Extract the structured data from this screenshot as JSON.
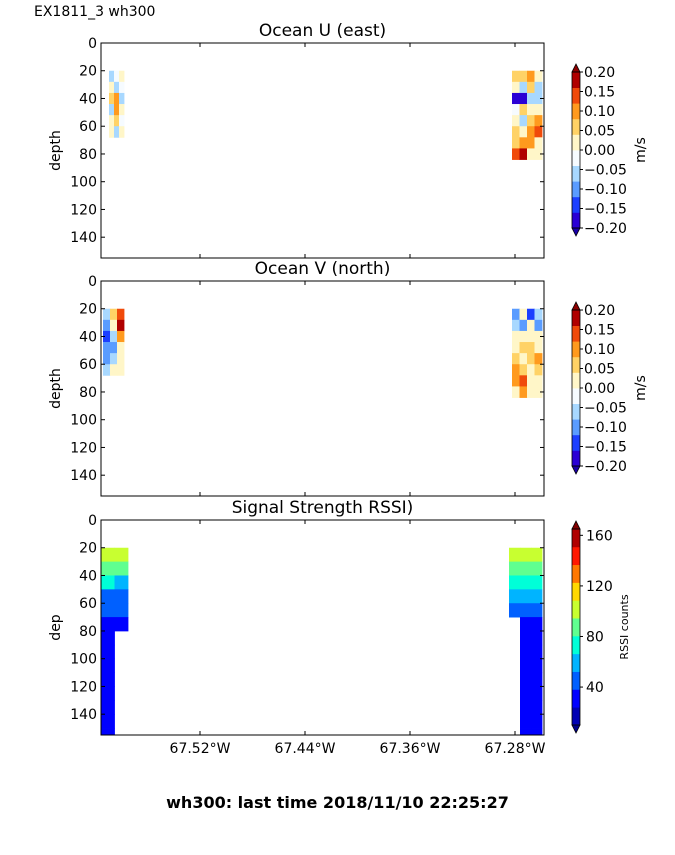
{
  "page": {
    "corner_title": "EX1811_3 wh300",
    "footer": "wh300: last time 2018/11/10 22:25:27"
  },
  "chart_data": [
    {
      "type": "heatmap",
      "title": "Ocean U (east)",
      "ylabel": "depth",
      "ylim": [
        155,
        0
      ],
      "yticks": [
        0,
        20,
        40,
        60,
        80,
        100,
        120,
        140
      ],
      "xticks": [],
      "colorbar": {
        "label": "m/s",
        "ticks": [
          "0.20",
          "0.15",
          "0.10",
          "0.05",
          "0.00",
          "−0.05",
          "−0.10",
          "−0.15",
          "−0.20"
        ],
        "colors": [
          "#2a00d5",
          "#1c3fff",
          "#5a9cff",
          "#a8d8ff",
          "#f6fbff",
          "#fff6c8",
          "#ffd266",
          "#ff9a1e",
          "#f04a0a",
          "#b00000"
        ],
        "min_color": "#1a00a8",
        "max_color": "#8c0000"
      },
      "regions": [
        {
          "name": "west",
          "depths": [
            20,
            28,
            36,
            44,
            52,
            60
          ],
          "columns": [
            [
              -0.05,
              0.0,
              0.05,
              -0.08,
              0.02,
              0.0
            ],
            [
              -0.02,
              -0.06,
              0.08,
              0.1,
              0.06,
              -0.04
            ],
            [
              0.0,
              -0.03,
              -0.05,
              0.0,
              -0.02,
              0.0
            ]
          ]
        },
        {
          "name": "east",
          "depths": [
            20,
            28,
            36,
            44,
            52,
            60,
            68,
            76
          ],
          "columns": [
            [
              0.04,
              0.0,
              -0.18,
              -0.02,
              0.02,
              0.04,
              0.06,
              0.14
            ],
            [
              0.06,
              -0.05,
              -0.2,
              0.04,
              -0.04,
              0.0,
              0.1,
              0.18
            ],
            [
              0.1,
              0.06,
              -0.08,
              0.0,
              0.06,
              0.1,
              0.12,
              0.0
            ],
            [
              0.02,
              -0.04,
              -0.06,
              0.02,
              0.08,
              0.14,
              0.02,
              0.0
            ]
          ]
        }
      ]
    },
    {
      "type": "heatmap",
      "title": "Ocean V (north)",
      "ylabel": "depth",
      "ylim": [
        155,
        0
      ],
      "yticks": [
        0,
        20,
        40,
        60,
        80,
        100,
        120,
        140
      ],
      "xticks": [],
      "colorbar": {
        "label": "m/s",
        "ticks": [
          "0.20",
          "0.15",
          "0.10",
          "0.05",
          "0.00",
          "−0.05",
          "−0.10",
          "−0.15",
          "−0.20"
        ],
        "colors": [
          "#2a00d5",
          "#1c3fff",
          "#5a9cff",
          "#a8d8ff",
          "#f6fbff",
          "#fff6c8",
          "#ffd266",
          "#ff9a1e",
          "#f04a0a",
          "#b00000"
        ],
        "min_color": "#1a00a8",
        "max_color": "#8c0000"
      },
      "regions": [
        {
          "name": "west",
          "depths": [
            20,
            28,
            36,
            44,
            52,
            60
          ],
          "columns": [
            [
              -0.08,
              -0.12,
              -0.14,
              -0.12,
              -0.1,
              -0.06
            ],
            [
              0.05,
              0.0,
              -0.06,
              -0.1,
              -0.04,
              0.0
            ],
            [
              0.15,
              0.18,
              0.1,
              0.0,
              0.0,
              0.0
            ]
          ]
        },
        {
          "name": "east",
          "depths": [
            20,
            28,
            36,
            44,
            52,
            60,
            68,
            76
          ],
          "columns": [
            [
              -0.1,
              -0.08,
              0.0,
              0.02,
              0.05,
              0.08,
              0.12,
              0.0
            ],
            [
              0.0,
              -0.12,
              0.02,
              0.04,
              0.02,
              0.06,
              0.15,
              0.1
            ],
            [
              -0.14,
              0.02,
              0.0,
              0.05,
              0.04,
              0.02,
              0.0,
              0.0
            ],
            [
              -0.04,
              -0.1,
              0.0,
              0.03,
              0.08,
              0.06,
              0.0,
              0.0
            ]
          ]
        }
      ]
    },
    {
      "type": "heatmap",
      "title": "Signal Strength RSSI)",
      "ylabel": "dep",
      "ylim": [
        155,
        0
      ],
      "yticks": [
        0,
        20,
        40,
        60,
        80,
        100,
        120,
        140
      ],
      "xticks": [
        "67.52°W",
        "67.44°W",
        "67.36°W",
        "67.28°W"
      ],
      "colorbar": {
        "label": "RSSI counts",
        "ticks": [
          "160",
          "120",
          "80",
          "40"
        ],
        "colors": [
          "#0000b4",
          "#0000ff",
          "#0060ff",
          "#00b4ff",
          "#00ffd8",
          "#60ff90",
          "#c8ff30",
          "#ffd800",
          "#ff7800",
          "#ff1800",
          "#b00000"
        ],
        "min_color": "#00008a",
        "max_color": "#800000"
      },
      "value_range": [
        10,
        165
      ],
      "regions": [
        {
          "name": "west",
          "depths": [
            20,
            30,
            40,
            50,
            60,
            70,
            80,
            90,
            100,
            110,
            120,
            130,
            140,
            150
          ],
          "columns": [
            [
              98,
              84,
              68,
              52,
              42,
              36,
              34,
              34,
              34,
              34,
              34,
              34,
              34,
              34
            ],
            [
              96,
              82,
              66,
              52,
              42,
              36,
              null,
              null,
              null,
              null,
              null,
              null,
              null,
              null
            ]
          ]
        },
        {
          "name": "east",
          "depths": [
            20,
            30,
            40,
            50,
            60,
            70,
            80,
            90,
            100,
            110,
            120,
            130,
            140,
            150
          ],
          "columns": [
            [
              100,
              86,
              70,
              54,
              44,
              null,
              null,
              null,
              null,
              null,
              null,
              null,
              null,
              null
            ],
            [
              102,
              88,
              72,
              56,
              46,
              38,
              36,
              35,
              34,
              34,
              34,
              34,
              34,
              34
            ],
            [
              98,
              86,
              70,
              54,
              44,
              38,
              36,
              35,
              34,
              34,
              34,
              34,
              34,
              34
            ]
          ]
        }
      ]
    }
  ]
}
